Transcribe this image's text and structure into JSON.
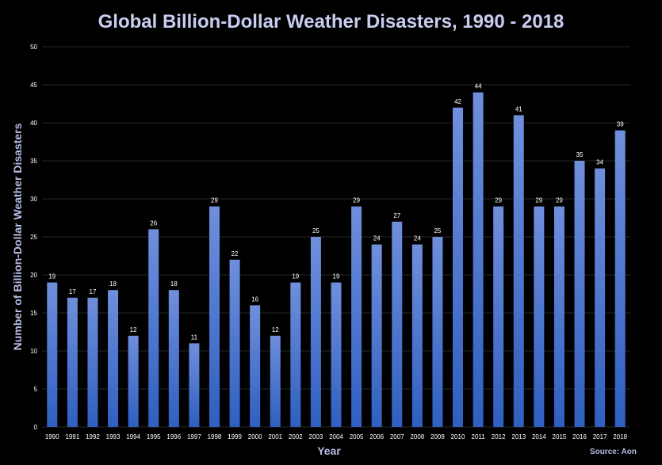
{
  "chart_data": {
    "type": "bar",
    "title": "Global Billion-Dollar Weather Disasters, 1990 - 2018",
    "xlabel": "Year",
    "ylabel": "Number of Billion-Dollar Weather Disasters",
    "source": "Source: Aon",
    "ylim": [
      0,
      50
    ],
    "yticks": [
      0,
      5,
      10,
      15,
      20,
      25,
      30,
      35,
      40,
      45,
      50
    ],
    "grid": true,
    "categories": [
      "1990",
      "1991",
      "1992",
      "1993",
      "1994",
      "1995",
      "1996",
      "1997",
      "1998",
      "1999",
      "2000",
      "2001",
      "2002",
      "2003",
      "2004",
      "2005",
      "2006",
      "2007",
      "2008",
      "2009",
      "2010",
      "2011",
      "2012",
      "2013",
      "2014",
      "2015",
      "2016",
      "2017",
      "2018"
    ],
    "values": [
      19,
      17,
      17,
      18,
      12,
      26,
      18,
      11,
      29,
      22,
      16,
      12,
      19,
      25,
      19,
      29,
      24,
      27,
      24,
      25,
      42,
      44,
      29,
      41,
      29,
      29,
      35,
      34,
      39
    ],
    "colors": {
      "background": "#000000",
      "bar_top": "#6f8fdc",
      "bar_bottom": "#2f5fc0",
      "gridline": "#262626",
      "title": "#c9cdf0",
      "axis_label": "#b7bde3"
    }
  }
}
